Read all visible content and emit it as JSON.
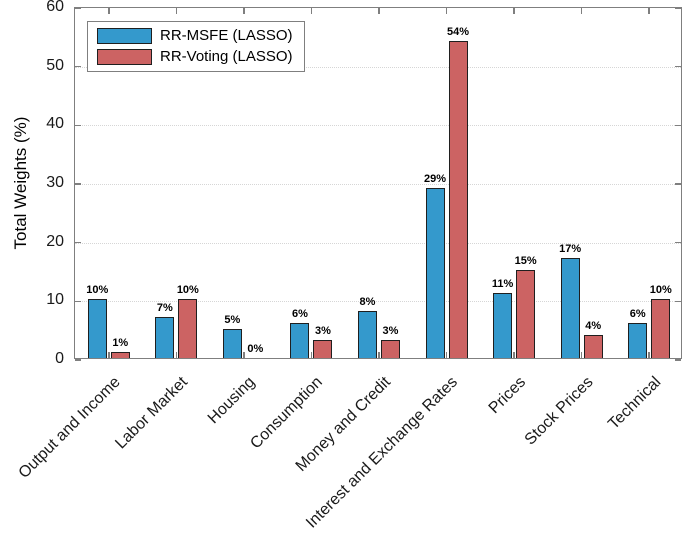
{
  "chart_data": {
    "type": "bar",
    "title": "",
    "xlabel": "",
    "ylabel": "Total Weights (%)",
    "ylim": [
      0,
      60
    ],
    "yticks": [
      0,
      10,
      20,
      30,
      40,
      50,
      60
    ],
    "grid": "horizontal-dotted",
    "legend_position": "top-left",
    "value_label_suffix": "%",
    "categories": [
      "Output and Income",
      "Labor Market",
      "Housing",
      "Consumption",
      "Money and Credit",
      "Interest and Exchange Rates",
      "Prices",
      "Stock Prices",
      "Technical"
    ],
    "series": [
      {
        "name": "RR-MSFE (LASSO)",
        "color": "#3499CC",
        "values": [
          10,
          7,
          5,
          6,
          8,
          29,
          11,
          17,
          6
        ]
      },
      {
        "name": "RR-Voting (LASSO)",
        "color": "#CC6363",
        "values": [
          1,
          10,
          0,
          3,
          3,
          54,
          15,
          4,
          10
        ]
      }
    ],
    "colors": {
      "axis_box": "#7f7f7f",
      "bar_border": "#1f1f1f",
      "gridline": "#d6d6d6",
      "text": "#1a1a1a"
    }
  }
}
